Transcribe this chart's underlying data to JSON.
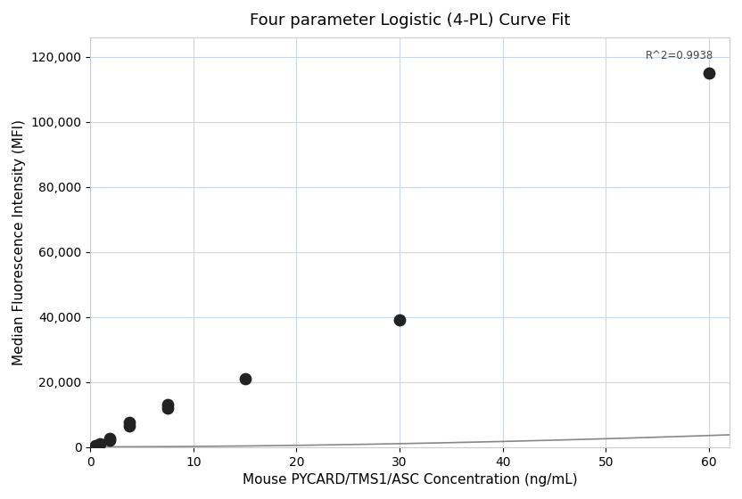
{
  "title": "Four parameter Logistic (4-PL) Curve Fit",
  "xlabel": "Mouse PYCARD/TMS1/ASC Concentration (ng/mL)",
  "ylabel": "Median Fluorescence Intensity (MFI)",
  "r_squared": "R^2=0.9938",
  "scatter_x": [
    0.47,
    0.94,
    1.88,
    1.88,
    3.75,
    3.75,
    7.5,
    7.5,
    15.0,
    30.0,
    60.0
  ],
  "scatter_y": [
    500,
    1100,
    2200,
    2700,
    6500,
    7500,
    12000,
    13000,
    21000,
    39000,
    115000
  ],
  "xlim": [
    0,
    62
  ],
  "ylim": [
    0,
    126000
  ],
  "xticks": [
    0,
    10,
    20,
    30,
    40,
    50,
    60
  ],
  "yticks": [
    0,
    20000,
    40000,
    60000,
    80000,
    100000,
    120000
  ],
  "scatter_color": "#222222",
  "scatter_size": 80,
  "line_color": "#888888",
  "grid_color": "#c8d8e8",
  "background_color": "#ffffff",
  "title_fontsize": 13,
  "label_fontsize": 11,
  "tick_fontsize": 10
}
